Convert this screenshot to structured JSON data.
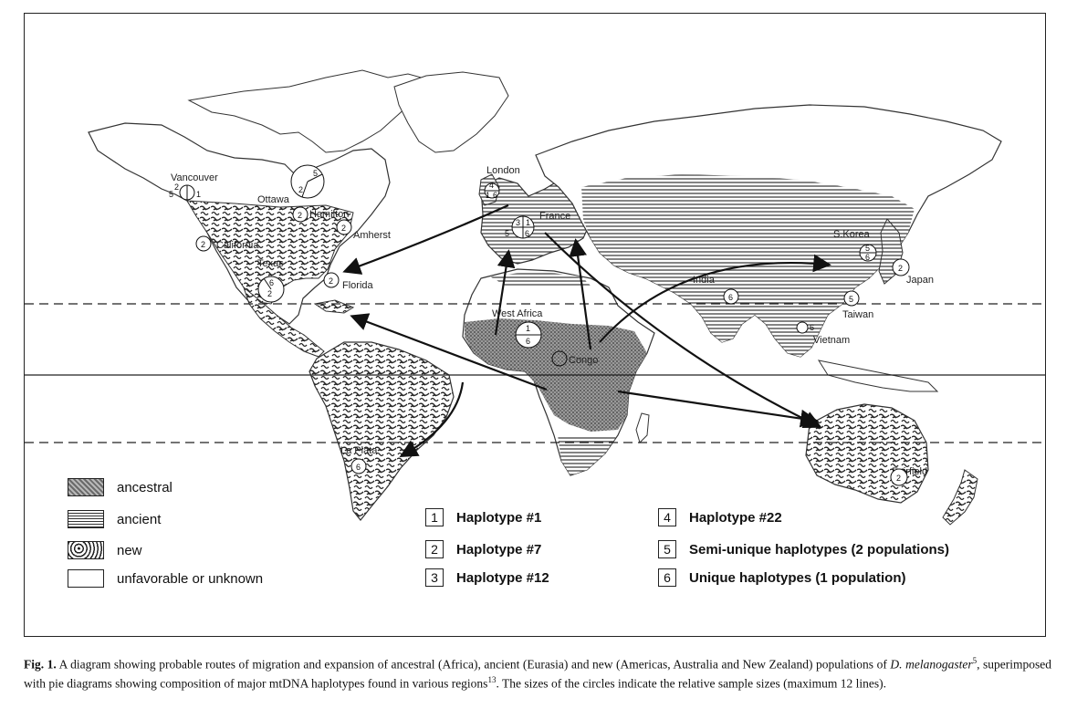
{
  "sites": [
    {
      "id": "vancouver",
      "label": "Vancouver"
    },
    {
      "id": "ottawa",
      "label": "Ottawa"
    },
    {
      "id": "hamilton",
      "label": "Hamilton"
    },
    {
      "id": "amherst",
      "label": "Amherst"
    },
    {
      "id": "california",
      "label": "California"
    },
    {
      "id": "texas",
      "label": "Texas"
    },
    {
      "id": "florida",
      "label": "Florida"
    },
    {
      "id": "london",
      "label": "London"
    },
    {
      "id": "france",
      "label": "France"
    },
    {
      "id": "west_africa",
      "label": "West Africa"
    },
    {
      "id": "congo",
      "label": "Congo"
    },
    {
      "id": "india",
      "label": "India"
    },
    {
      "id": "s_korea",
      "label": "S.Korea"
    },
    {
      "id": "japan",
      "label": "Japan"
    },
    {
      "id": "taiwan",
      "label": "Taiwan"
    },
    {
      "id": "vietnam",
      "label": "Vietnam"
    },
    {
      "id": "la_plata",
      "label": "La Plata"
    },
    {
      "id": "fairfield",
      "label": "Fairfield"
    }
  ],
  "pie_numbers": {
    "vancouver": [
      "2",
      "5",
      "1"
    ],
    "ottawa": [
      "5",
      "2"
    ],
    "hamilton": [
      "2"
    ],
    "amherst": [
      "2"
    ],
    "california": [
      "2"
    ],
    "texas": [
      "6",
      "2"
    ],
    "florida": [
      "2"
    ],
    "london": [
      "4",
      "1",
      "6"
    ],
    "france": [
      "3",
      "1",
      "5",
      "6"
    ],
    "west_africa": [
      "1",
      "6"
    ],
    "india": [
      "6"
    ],
    "s_korea": [
      "5",
      "6"
    ],
    "japan": [
      "2"
    ],
    "taiwan": [
      "5"
    ],
    "vietnam": [
      "6"
    ],
    "la_plata": [
      "6"
    ],
    "fairfield": [
      "2"
    ]
  },
  "legend": {
    "ancestral": "ancestral",
    "ancient": "ancient",
    "new": "new",
    "unknown": "unfavorable or unknown"
  },
  "haplotypes": [
    {
      "num": "1",
      "label": "Haplotype #1"
    },
    {
      "num": "2",
      "label": "Haplotype #7"
    },
    {
      "num": "3",
      "label": "Haplotype #12"
    },
    {
      "num": "4",
      "label": "Haplotype #22"
    },
    {
      "num": "5",
      "label": "Semi-unique haplotypes (2 populations)"
    },
    {
      "num": "6",
      "label": "Unique haplotypes (1 population)"
    }
  ],
  "caption": {
    "fig": "Fig. 1.",
    "part1": " A diagram showing probable routes of migration and expansion of ancestral (Africa), ancient (Eurasia) and new (Americas, Australia and New Zealand) populations of ",
    "species": "D. melanogaster",
    "ref1": "5",
    "part2": ", superimposed with pie diagrams showing composition of major mtDNA haplotypes found in various regions",
    "ref2": "13",
    "part3": ". The sizes of the circles indicate the relative sample sizes (maximum 12 lines)."
  }
}
